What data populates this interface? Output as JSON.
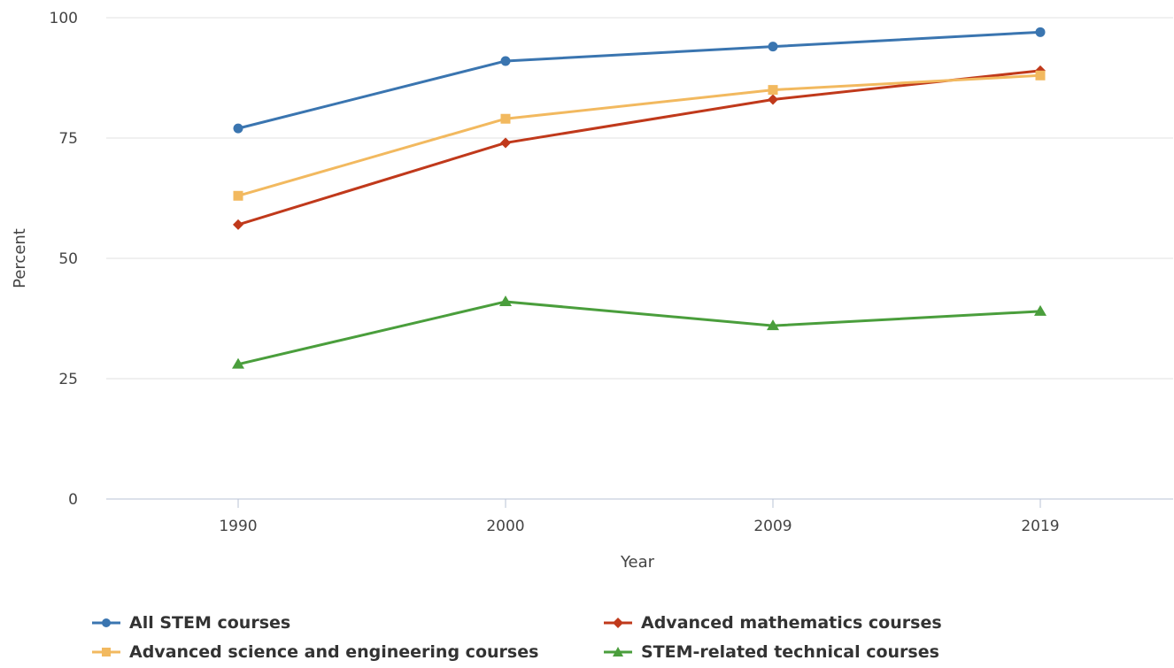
{
  "chart_data": {
    "type": "line",
    "title": "",
    "xlabel": "Year",
    "ylabel": "Percent",
    "categories": [
      "1990",
      "2000",
      "2009",
      "2019"
    ],
    "ylim": [
      0,
      100
    ],
    "yticks": [
      "0",
      "25",
      "50",
      "75",
      "100"
    ],
    "grid": "horizontal",
    "legend_position": "bottom",
    "series": [
      {
        "name": "All STEM courses",
        "values": [
          77,
          91,
          94,
          97
        ],
        "color": "#3a75b0",
        "marker": "circle"
      },
      {
        "name": "Advanced mathematics courses",
        "values": [
          57,
          74,
          83,
          89
        ],
        "color": "#c0391b",
        "marker": "diamond"
      },
      {
        "name": "Advanced science and engineering courses",
        "values": [
          63,
          79,
          85,
          88
        ],
        "color": "#f2b95f",
        "marker": "square"
      },
      {
        "name": "STEM-related technical courses",
        "values": [
          28,
          41,
          36,
          39
        ],
        "color": "#4a9e3c",
        "marker": "triangle"
      }
    ]
  }
}
